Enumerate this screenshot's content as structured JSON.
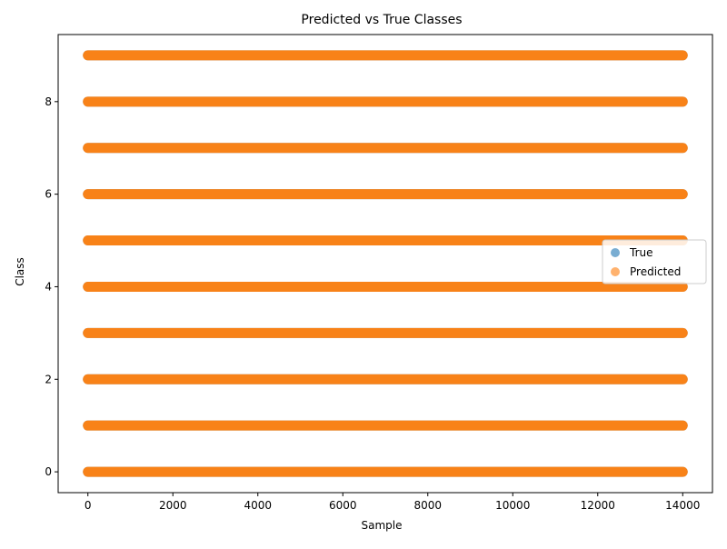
{
  "chart_data": {
    "type": "scatter",
    "title": "Predicted vs True Classes",
    "xlabel": "Sample",
    "ylabel": "Class",
    "xlim": [
      -700,
      14700
    ],
    "ylim": [
      -0.45,
      9.45
    ],
    "x_ticks": [
      0,
      2000,
      4000,
      6000,
      8000,
      10000,
      12000,
      14000
    ],
    "y_ticks": [
      0,
      2,
      4,
      6,
      8
    ],
    "x_tick_labels": [
      "0",
      "2000",
      "4000",
      "6000",
      "8000",
      "10000",
      "12000",
      "14000"
    ],
    "y_tick_labels": [
      "0",
      "2",
      "4",
      "6",
      "8"
    ],
    "grid": false,
    "legend": "center-right",
    "series": [
      {
        "name": "True",
        "color": "#1f77b4",
        "alpha": 0.6,
        "classes": [
          0,
          1,
          2,
          3,
          4,
          5,
          6,
          7,
          8,
          9
        ],
        "x_range": [
          0,
          14000
        ]
      },
      {
        "name": "Predicted",
        "color": "#ff7f0e",
        "alpha": 0.6,
        "classes": [
          0,
          1,
          2,
          3,
          4,
          5,
          6,
          7,
          8,
          9
        ],
        "x_range": [
          0,
          14000
        ]
      }
    ]
  }
}
